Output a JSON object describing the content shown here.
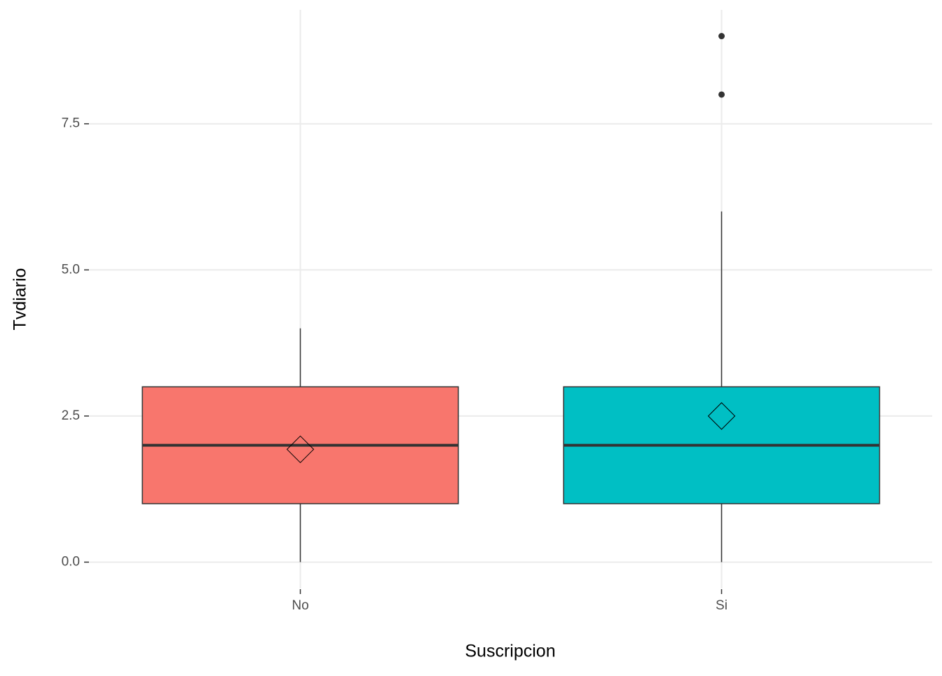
{
  "chart_data": {
    "type": "boxplot",
    "x_label": "Suscripcion",
    "y_label": "Tvdiario",
    "categories": [
      "No",
      "Si"
    ],
    "colors": [
      "#f8766d",
      "#00bfc4"
    ],
    "boxes": [
      {
        "min": 0,
        "q1": 1,
        "median": 2,
        "q3": 3,
        "max": 4,
        "mean": 1.93,
        "outliers": []
      },
      {
        "min": 0,
        "q1": 1,
        "median": 2,
        "q3": 3,
        "max": 6,
        "mean": 2.5,
        "outliers": [
          8,
          9
        ]
      }
    ],
    "ylim": [
      -0.45,
      9.45
    ],
    "yticks": [
      {
        "value": 0,
        "label": "0.0"
      },
      2.5,
      {
        "value": 5,
        "label": "5.0"
      },
      7.5
    ],
    "grid": true
  }
}
